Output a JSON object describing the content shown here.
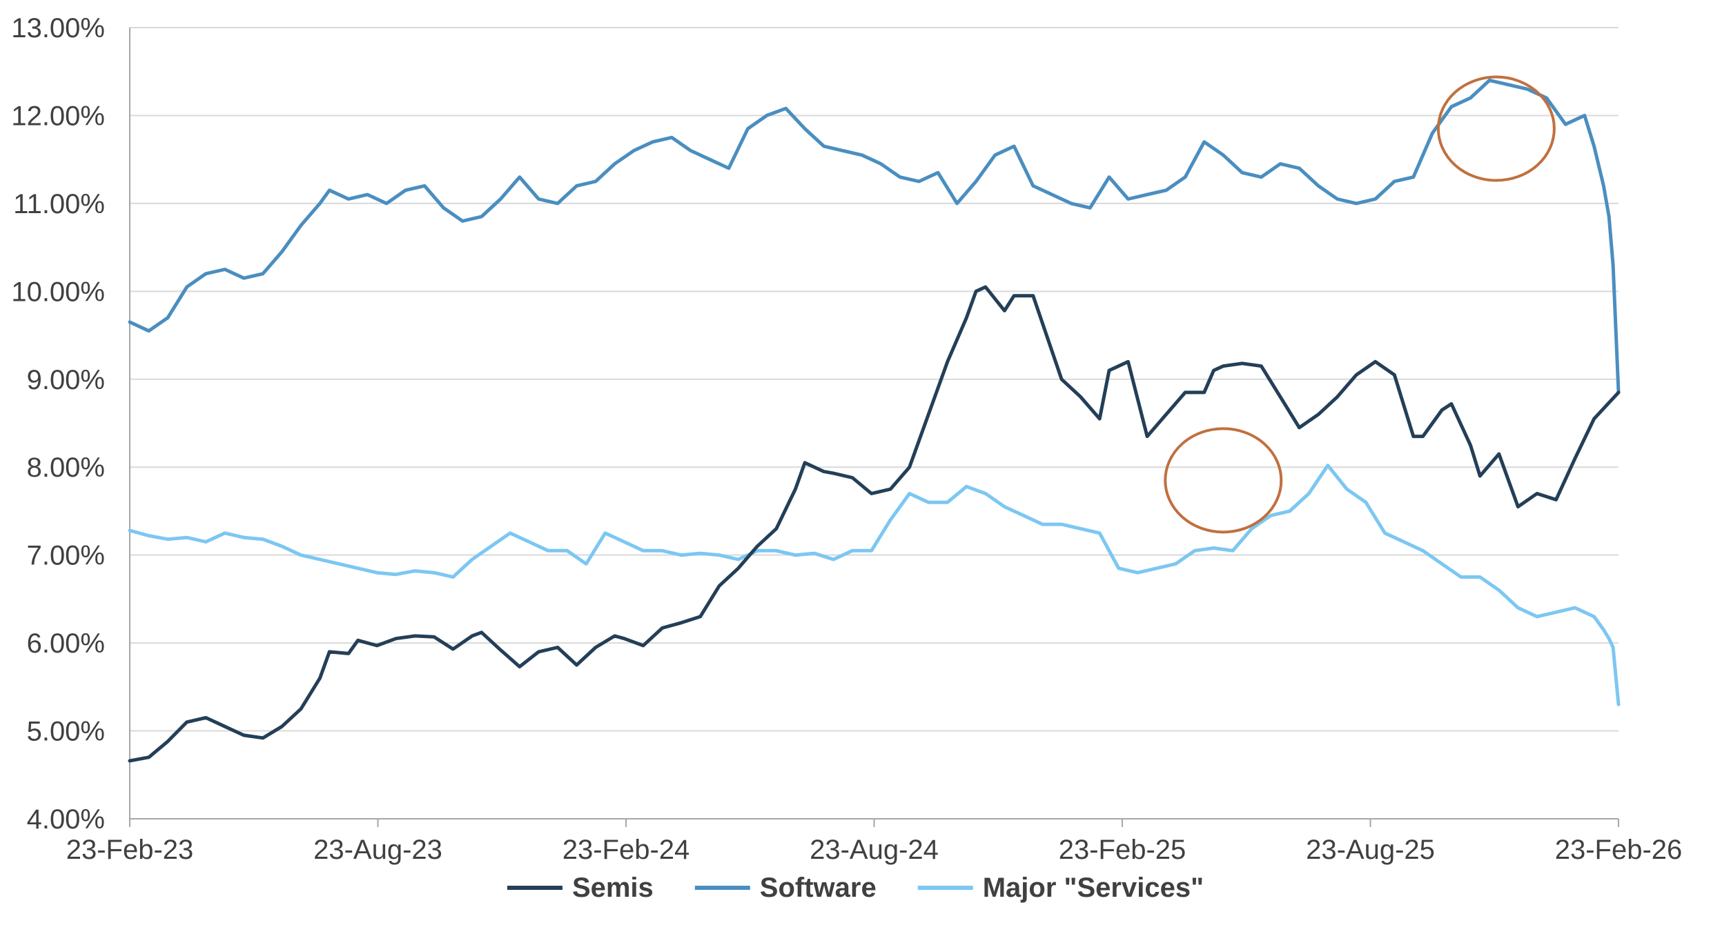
{
  "chart_data": {
    "type": "line",
    "title": "",
    "xlabel": "",
    "ylabel": "",
    "x_ticks": [
      "23-Feb-23",
      "23-Aug-23",
      "23-Feb-24",
      "23-Aug-24",
      "23-Feb-25",
      "23-Aug-25",
      "23-Feb-26"
    ],
    "y_ticks": [
      "4.00%",
      "5.00%",
      "6.00%",
      "7.00%",
      "8.00%",
      "9.00%",
      "10.00%",
      "11.00%",
      "12.00%",
      "13.00%"
    ],
    "ylim": [
      4.0,
      13.0
    ],
    "xlim": [
      "23-Feb-23",
      "23-Feb-26"
    ],
    "grid": "horizontal",
    "legend_position": "bottom",
    "colors": {
      "Semis": "#243F57",
      "Software": "#4A8EC0",
      "Major \"Services\"": "#7CC7F2",
      "annotation": "#C0703F",
      "grid": "#D9D9D9",
      "axis": "#A6A6A6"
    },
    "annotations": [
      {
        "type": "circle",
        "x": "2025-05-08",
        "y": 7.85
      },
      {
        "type": "circle",
        "x": "2025-11-25",
        "y": 11.85
      }
    ],
    "series": [
      {
        "name": "Semis",
        "points": [
          [
            "2023-02-23",
            4.66
          ],
          [
            "2023-03-09",
            4.7
          ],
          [
            "2023-03-23",
            4.88
          ],
          [
            "2023-04-06",
            5.1
          ],
          [
            "2023-04-20",
            5.15
          ],
          [
            "2023-05-04",
            5.05
          ],
          [
            "2023-05-18",
            4.95
          ],
          [
            "2023-06-01",
            4.92
          ],
          [
            "2023-06-15",
            5.05
          ],
          [
            "2023-06-29",
            5.25
          ],
          [
            "2023-07-13",
            5.6
          ],
          [
            "2023-07-20",
            5.9
          ],
          [
            "2023-08-03",
            5.88
          ],
          [
            "2023-08-10",
            6.03
          ],
          [
            "2023-08-24",
            5.97
          ],
          [
            "2023-09-07",
            6.05
          ],
          [
            "2023-09-21",
            6.08
          ],
          [
            "2023-10-05",
            6.07
          ],
          [
            "2023-10-19",
            5.93
          ],
          [
            "2023-11-02",
            6.08
          ],
          [
            "2023-11-09",
            6.12
          ],
          [
            "2023-11-23",
            5.92
          ],
          [
            "2023-12-07",
            5.73
          ],
          [
            "2023-12-21",
            5.9
          ],
          [
            "2024-01-04",
            5.95
          ],
          [
            "2024-01-18",
            5.75
          ],
          [
            "2024-02-01",
            5.95
          ],
          [
            "2024-02-15",
            6.08
          ],
          [
            "2024-02-22",
            6.05
          ],
          [
            "2024-03-07",
            5.97
          ],
          [
            "2024-03-21",
            6.17
          ],
          [
            "2024-04-04",
            6.23
          ],
          [
            "2024-04-18",
            6.3
          ],
          [
            "2024-05-02",
            6.65
          ],
          [
            "2024-05-16",
            6.85
          ],
          [
            "2024-05-30",
            7.1
          ],
          [
            "2024-06-13",
            7.3
          ],
          [
            "2024-06-27",
            7.75
          ],
          [
            "2024-07-04",
            8.05
          ],
          [
            "2024-07-18",
            7.95
          ],
          [
            "2024-07-25",
            7.93
          ],
          [
            "2024-08-08",
            7.88
          ],
          [
            "2024-08-22",
            7.7
          ],
          [
            "2024-09-05",
            7.75
          ],
          [
            "2024-09-19",
            8.0
          ],
          [
            "2024-10-03",
            8.6
          ],
          [
            "2024-10-17",
            9.2
          ],
          [
            "2024-10-31",
            9.7
          ],
          [
            "2024-11-07",
            10.0
          ],
          [
            "2024-11-14",
            10.05
          ],
          [
            "2024-11-28",
            9.78
          ],
          [
            "2024-12-05",
            9.95
          ],
          [
            "2024-12-19",
            9.95
          ],
          [
            "2025-01-09",
            9.0
          ],
          [
            "2025-01-23",
            8.8
          ],
          [
            "2025-02-06",
            8.55
          ],
          [
            "2025-02-13",
            9.1
          ],
          [
            "2025-02-27",
            9.2
          ],
          [
            "2025-03-13",
            8.35
          ],
          [
            "2025-03-27",
            8.6
          ],
          [
            "2025-04-10",
            8.85
          ],
          [
            "2025-04-24",
            8.85
          ],
          [
            "2025-05-01",
            9.1
          ],
          [
            "2025-05-08",
            9.15
          ],
          [
            "2025-05-22",
            9.18
          ],
          [
            "2025-06-05",
            9.15
          ],
          [
            "2025-06-19",
            8.8
          ],
          [
            "2025-07-03",
            8.45
          ],
          [
            "2025-07-17",
            8.6
          ],
          [
            "2025-07-31",
            8.8
          ],
          [
            "2025-08-14",
            9.05
          ],
          [
            "2025-08-28",
            9.2
          ],
          [
            "2025-09-11",
            9.05
          ],
          [
            "2025-09-25",
            8.35
          ],
          [
            "2025-10-02",
            8.35
          ],
          [
            "2025-10-16",
            8.65
          ],
          [
            "2025-10-23",
            8.72
          ],
          [
            "2025-11-06",
            8.25
          ],
          [
            "2025-11-13",
            7.9
          ],
          [
            "2025-11-27",
            8.15
          ],
          [
            "2025-12-11",
            7.55
          ],
          [
            "2025-12-25",
            7.7
          ],
          [
            "2026-01-08",
            7.63
          ],
          [
            "2026-01-22",
            8.1
          ],
          [
            "2026-02-05",
            8.55
          ],
          [
            "2026-02-23",
            8.85
          ]
        ]
      },
      {
        "name": "Software",
        "points": [
          [
            "2023-02-23",
            9.65
          ],
          [
            "2023-03-09",
            9.55
          ],
          [
            "2023-03-23",
            9.7
          ],
          [
            "2023-04-06",
            10.05
          ],
          [
            "2023-04-20",
            10.2
          ],
          [
            "2023-05-04",
            10.25
          ],
          [
            "2023-05-18",
            10.15
          ],
          [
            "2023-06-01",
            10.2
          ],
          [
            "2023-06-15",
            10.45
          ],
          [
            "2023-06-29",
            10.75
          ],
          [
            "2023-07-13",
            11.0
          ],
          [
            "2023-07-20",
            11.15
          ],
          [
            "2023-08-03",
            11.05
          ],
          [
            "2023-08-17",
            11.1
          ],
          [
            "2023-08-31",
            11.0
          ],
          [
            "2023-09-14",
            11.15
          ],
          [
            "2023-09-28",
            11.2
          ],
          [
            "2023-10-12",
            10.95
          ],
          [
            "2023-10-26",
            10.8
          ],
          [
            "2023-11-09",
            10.85
          ],
          [
            "2023-11-23",
            11.05
          ],
          [
            "2023-12-07",
            11.3
          ],
          [
            "2023-12-21",
            11.05
          ],
          [
            "2024-01-04",
            11.0
          ],
          [
            "2024-01-18",
            11.2
          ],
          [
            "2024-02-01",
            11.25
          ],
          [
            "2024-02-15",
            11.45
          ],
          [
            "2024-02-29",
            11.6
          ],
          [
            "2024-03-14",
            11.7
          ],
          [
            "2024-03-28",
            11.75
          ],
          [
            "2024-04-11",
            11.6
          ],
          [
            "2024-04-25",
            11.5
          ],
          [
            "2024-05-09",
            11.4
          ],
          [
            "2024-05-23",
            11.85
          ],
          [
            "2024-06-06",
            12.0
          ],
          [
            "2024-06-20",
            12.08
          ],
          [
            "2024-07-04",
            11.85
          ],
          [
            "2024-07-18",
            11.65
          ],
          [
            "2024-08-01",
            11.6
          ],
          [
            "2024-08-15",
            11.55
          ],
          [
            "2024-08-29",
            11.45
          ],
          [
            "2024-09-12",
            11.3
          ],
          [
            "2024-09-26",
            11.25
          ],
          [
            "2024-10-10",
            11.35
          ],
          [
            "2024-10-24",
            11.0
          ],
          [
            "2024-11-07",
            11.25
          ],
          [
            "2024-11-21",
            11.55
          ],
          [
            "2024-12-05",
            11.65
          ],
          [
            "2024-12-19",
            11.2
          ],
          [
            "2025-01-02",
            11.1
          ],
          [
            "2025-01-16",
            11.0
          ],
          [
            "2025-01-30",
            10.95
          ],
          [
            "2025-02-13",
            11.3
          ],
          [
            "2025-02-27",
            11.05
          ],
          [
            "2025-03-13",
            11.1
          ],
          [
            "2025-03-27",
            11.15
          ],
          [
            "2025-04-10",
            11.3
          ],
          [
            "2025-04-24",
            11.7
          ],
          [
            "2025-05-08",
            11.55
          ],
          [
            "2025-05-22",
            11.35
          ],
          [
            "2025-06-05",
            11.3
          ],
          [
            "2025-06-19",
            11.45
          ],
          [
            "2025-07-03",
            11.4
          ],
          [
            "2025-07-17",
            11.2
          ],
          [
            "2025-07-31",
            11.05
          ],
          [
            "2025-08-14",
            11.0
          ],
          [
            "2025-08-28",
            11.05
          ],
          [
            "2025-09-11",
            11.25
          ],
          [
            "2025-09-25",
            11.3
          ],
          [
            "2025-10-09",
            11.8
          ],
          [
            "2025-10-23",
            12.1
          ],
          [
            "2025-11-06",
            12.2
          ],
          [
            "2025-11-20",
            12.4
          ],
          [
            "2025-12-04",
            12.35
          ],
          [
            "2025-12-18",
            12.3
          ],
          [
            "2026-01-01",
            12.2
          ],
          [
            "2026-01-15",
            11.9
          ],
          [
            "2026-01-29",
            12.0
          ],
          [
            "2026-02-05",
            11.65
          ],
          [
            "2026-02-12",
            11.2
          ],
          [
            "2026-02-16",
            10.85
          ],
          [
            "2026-02-19",
            10.3
          ],
          [
            "2026-02-23",
            8.85
          ]
        ]
      },
      {
        "name": "Major \"Services\"",
        "points": [
          [
            "2023-02-23",
            7.28
          ],
          [
            "2023-03-09",
            7.22
          ],
          [
            "2023-03-23",
            7.18
          ],
          [
            "2023-04-06",
            7.2
          ],
          [
            "2023-04-20",
            7.15
          ],
          [
            "2023-05-04",
            7.25
          ],
          [
            "2023-05-18",
            7.2
          ],
          [
            "2023-06-01",
            7.18
          ],
          [
            "2023-06-15",
            7.1
          ],
          [
            "2023-06-29",
            7.0
          ],
          [
            "2023-07-13",
            6.95
          ],
          [
            "2023-07-27",
            6.9
          ],
          [
            "2023-08-10",
            6.85
          ],
          [
            "2023-08-24",
            6.8
          ],
          [
            "2023-09-07",
            6.78
          ],
          [
            "2023-09-21",
            6.82
          ],
          [
            "2023-10-05",
            6.8
          ],
          [
            "2023-10-19",
            6.75
          ],
          [
            "2023-11-02",
            6.95
          ],
          [
            "2023-11-16",
            7.1
          ],
          [
            "2023-11-30",
            7.25
          ],
          [
            "2023-12-14",
            7.15
          ],
          [
            "2023-12-28",
            7.05
          ],
          [
            "2024-01-11",
            7.05
          ],
          [
            "2024-01-25",
            6.9
          ],
          [
            "2024-02-08",
            7.25
          ],
          [
            "2024-02-22",
            7.15
          ],
          [
            "2024-03-07",
            7.05
          ],
          [
            "2024-03-21",
            7.05
          ],
          [
            "2024-04-04",
            7.0
          ],
          [
            "2024-04-18",
            7.02
          ],
          [
            "2024-05-02",
            7.0
          ],
          [
            "2024-05-16",
            6.95
          ],
          [
            "2024-05-30",
            7.05
          ],
          [
            "2024-06-13",
            7.05
          ],
          [
            "2024-06-27",
            7.0
          ],
          [
            "2024-07-11",
            7.02
          ],
          [
            "2024-07-25",
            6.95
          ],
          [
            "2024-08-08",
            7.05
          ],
          [
            "2024-08-22",
            7.05
          ],
          [
            "2024-09-05",
            7.4
          ],
          [
            "2024-09-19",
            7.7
          ],
          [
            "2024-10-03",
            7.6
          ],
          [
            "2024-10-17",
            7.6
          ],
          [
            "2024-10-31",
            7.78
          ],
          [
            "2024-11-14",
            7.7
          ],
          [
            "2024-11-28",
            7.55
          ],
          [
            "2024-12-12",
            7.45
          ],
          [
            "2024-12-26",
            7.35
          ],
          [
            "2025-01-09",
            7.35
          ],
          [
            "2025-01-23",
            7.3
          ],
          [
            "2025-02-06",
            7.25
          ],
          [
            "2025-02-20",
            6.85
          ],
          [
            "2025-03-06",
            6.8
          ],
          [
            "2025-03-20",
            6.85
          ],
          [
            "2025-04-03",
            6.9
          ],
          [
            "2025-04-17",
            7.05
          ],
          [
            "2025-05-01",
            7.08
          ],
          [
            "2025-05-15",
            7.05
          ],
          [
            "2025-05-29",
            7.3
          ],
          [
            "2025-06-12",
            7.45
          ],
          [
            "2025-06-26",
            7.5
          ],
          [
            "2025-07-10",
            7.7
          ],
          [
            "2025-07-24",
            8.02
          ],
          [
            "2025-08-07",
            7.75
          ],
          [
            "2025-08-21",
            7.6
          ],
          [
            "2025-09-04",
            7.25
          ],
          [
            "2025-09-18",
            7.15
          ],
          [
            "2025-10-02",
            7.05
          ],
          [
            "2025-10-16",
            6.9
          ],
          [
            "2025-10-30",
            6.75
          ],
          [
            "2025-11-13",
            6.75
          ],
          [
            "2025-11-27",
            6.6
          ],
          [
            "2025-12-11",
            6.4
          ],
          [
            "2025-12-25",
            6.3
          ],
          [
            "2026-01-08",
            6.35
          ],
          [
            "2026-01-22",
            6.4
          ],
          [
            "2026-02-05",
            6.3
          ],
          [
            "2026-02-12",
            6.15
          ],
          [
            "2026-02-16",
            6.05
          ],
          [
            "2026-02-19",
            5.95
          ],
          [
            "2026-02-23",
            5.3
          ]
        ]
      }
    ]
  }
}
